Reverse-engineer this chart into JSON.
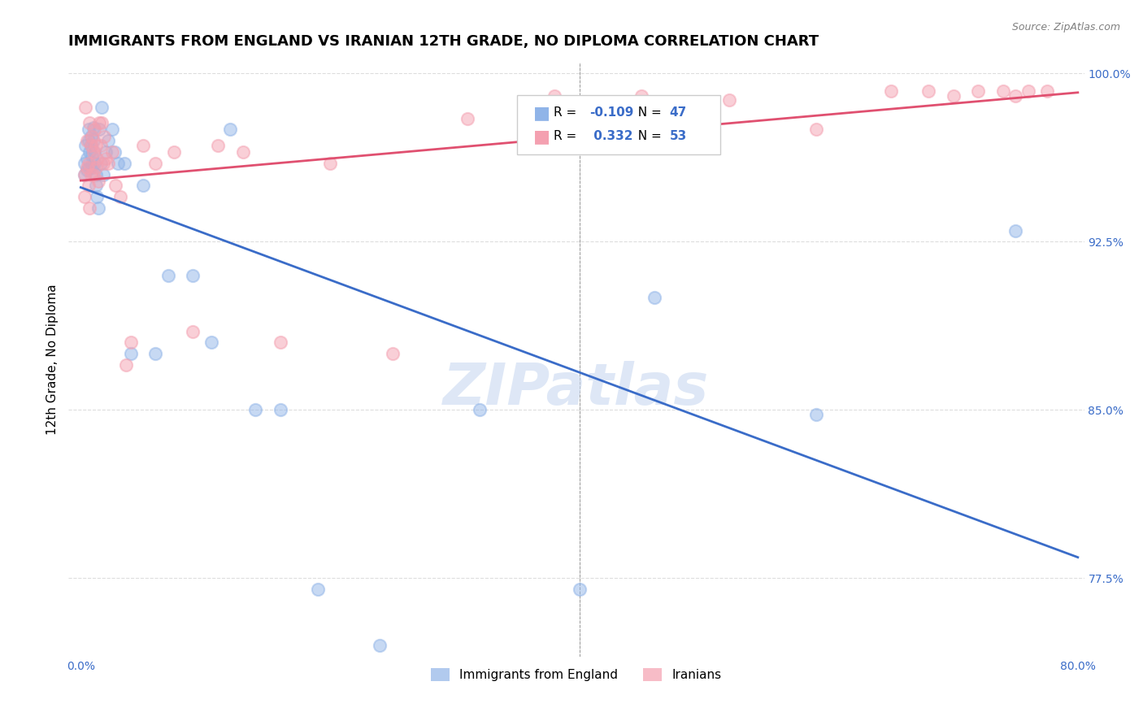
{
  "title": "IMMIGRANTS FROM ENGLAND VS IRANIAN 12TH GRADE, NO DIPLOMA CORRELATION CHART",
  "source": "Source: ZipAtlas.com",
  "xlabel_label": "Immigrants from England",
  "ylabel_label": "12th Grade, No Diploma",
  "xlim": [
    0.0,
    0.8
  ],
  "ylim": [
    0.74,
    1.005
  ],
  "xticks": [
    0.0,
    0.1,
    0.2,
    0.3,
    0.4,
    0.5,
    0.6,
    0.7,
    0.8
  ],
  "xticklabels": [
    "0.0%",
    "",
    "",
    "",
    "",
    "",
    "",
    "",
    "80.0%"
  ],
  "yticks": [
    0.775,
    0.85,
    0.925,
    1.0
  ],
  "yticklabels": [
    "77.5%",
    "85.0%",
    "92.5%",
    "100.0%"
  ],
  "england_R": -0.109,
  "england_N": 47,
  "iran_R": 0.332,
  "iran_N": 53,
  "england_color": "#90b4e8",
  "iran_color": "#f4a0b0",
  "england_line_color": "#3a6cc8",
  "iran_line_color": "#e05070",
  "england_scatter_x": [
    0.003,
    0.003,
    0.004,
    0.005,
    0.005,
    0.006,
    0.006,
    0.007,
    0.007,
    0.008,
    0.008,
    0.009,
    0.009,
    0.01,
    0.01,
    0.011,
    0.011,
    0.012,
    0.012,
    0.013,
    0.014,
    0.015,
    0.016,
    0.017,
    0.018,
    0.02,
    0.022,
    0.025,
    0.027,
    0.03,
    0.035,
    0.04,
    0.05,
    0.06,
    0.07,
    0.09,
    0.105,
    0.12,
    0.14,
    0.16,
    0.19,
    0.24,
    0.32,
    0.4,
    0.46,
    0.59,
    0.75
  ],
  "england_scatter_y": [
    0.96,
    0.955,
    0.968,
    0.962,
    0.957,
    0.975,
    0.97,
    0.965,
    0.958,
    0.972,
    0.968,
    0.963,
    0.958,
    0.976,
    0.97,
    0.965,
    0.96,
    0.955,
    0.95,
    0.945,
    0.94,
    0.975,
    0.96,
    0.985,
    0.955,
    0.965,
    0.97,
    0.975,
    0.965,
    0.96,
    0.96,
    0.875,
    0.95,
    0.875,
    0.91,
    0.91,
    0.88,
    0.975,
    0.85,
    0.85,
    0.77,
    0.745,
    0.85,
    0.77,
    0.9,
    0.848,
    0.93
  ],
  "iran_scatter_x": [
    0.003,
    0.003,
    0.004,
    0.005,
    0.005,
    0.006,
    0.006,
    0.007,
    0.007,
    0.008,
    0.008,
    0.009,
    0.01,
    0.01,
    0.011,
    0.012,
    0.012,
    0.013,
    0.014,
    0.015,
    0.016,
    0.017,
    0.018,
    0.019,
    0.02,
    0.022,
    0.025,
    0.028,
    0.032,
    0.036,
    0.04,
    0.05,
    0.06,
    0.075,
    0.09,
    0.11,
    0.13,
    0.16,
    0.2,
    0.25,
    0.31,
    0.38,
    0.45,
    0.52,
    0.59,
    0.65,
    0.68,
    0.7,
    0.72,
    0.74,
    0.75,
    0.76,
    0.775
  ],
  "iran_scatter_y": [
    0.955,
    0.945,
    0.985,
    0.97,
    0.958,
    0.96,
    0.95,
    0.978,
    0.94,
    0.968,
    0.955,
    0.972,
    0.965,
    0.955,
    0.975,
    0.968,
    0.958,
    0.962,
    0.952,
    0.978,
    0.968,
    0.978,
    0.96,
    0.972,
    0.962,
    0.96,
    0.965,
    0.95,
    0.945,
    0.87,
    0.88,
    0.968,
    0.96,
    0.965,
    0.885,
    0.968,
    0.965,
    0.88,
    0.96,
    0.875,
    0.98,
    0.99,
    0.99,
    0.988,
    0.975,
    0.992,
    0.992,
    0.99,
    0.992,
    0.992,
    0.99,
    0.992,
    0.992
  ],
  "watermark": "ZIPatlas",
  "grid_color": "#dddddd",
  "background_color": "#ffffff",
  "title_fontsize": 13,
  "axis_label_fontsize": 11,
  "tick_fontsize": 10,
  "scatter_size": 120,
  "scatter_alpha": 0.5
}
